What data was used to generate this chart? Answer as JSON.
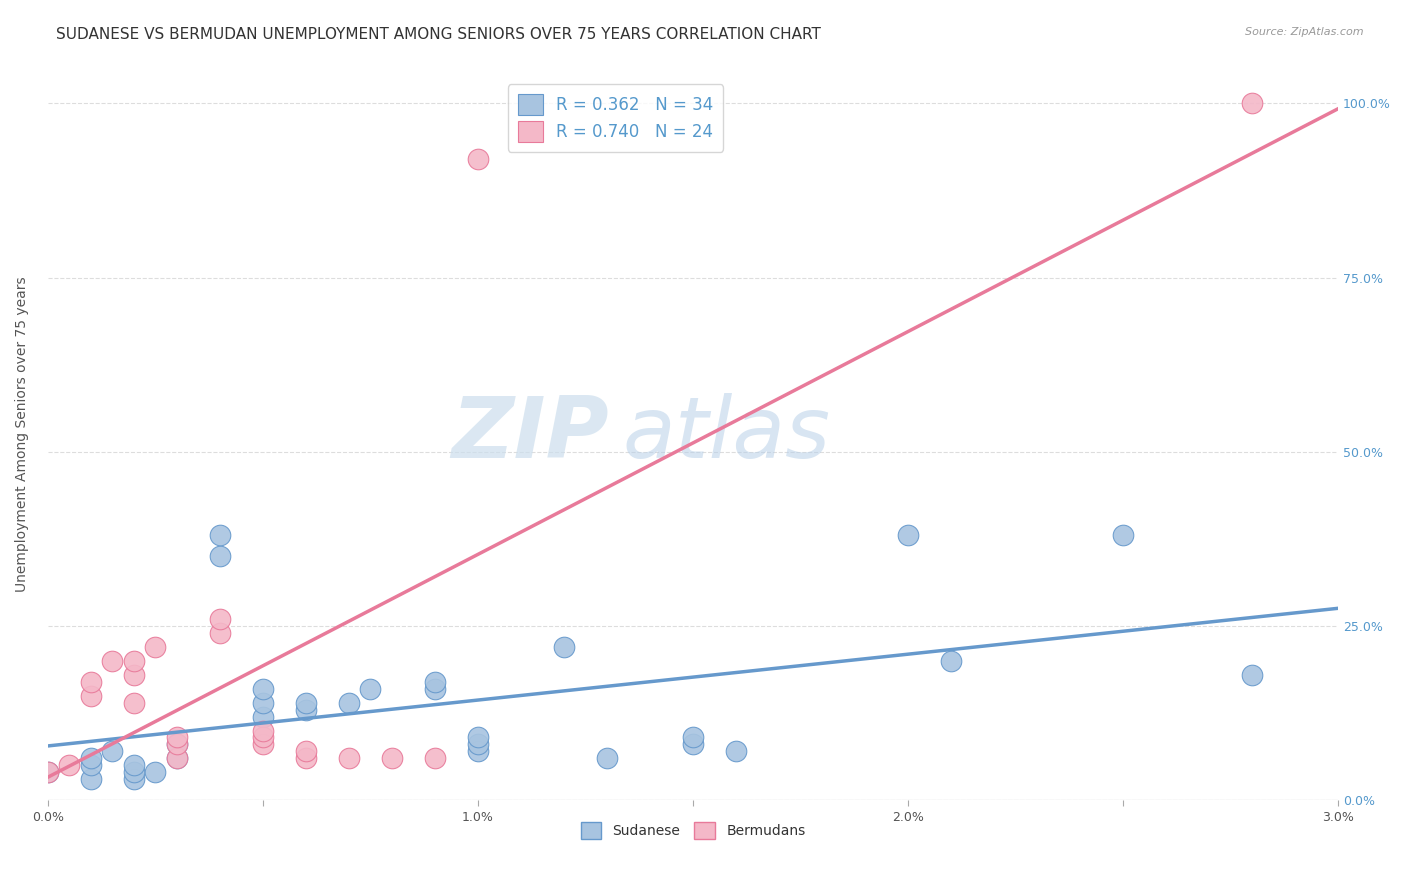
{
  "title": "SUDANESE VS BERMUDAN UNEMPLOYMENT AMONG SENIORS OVER 75 YEARS CORRELATION CHART",
  "source": "Source: ZipAtlas.com",
  "ylabel": "Unemployment Among Seniors over 75 years",
  "xlim": [
    0.0,
    0.03
  ],
  "ylim": [
    0.0,
    1.05
  ],
  "xticks": [
    0.0,
    0.005,
    0.01,
    0.015,
    0.02,
    0.025,
    0.03
  ],
  "xticklabels": [
    "0.0%",
    "",
    "1.0%",
    "",
    "2.0%",
    "",
    "3.0%"
  ],
  "yticks": [
    0.0,
    0.25,
    0.5,
    0.75,
    1.0
  ],
  "yticklabels": [
    "0.0%",
    "25.0%",
    "50.0%",
    "75.0%",
    "100.0%"
  ],
  "sudanese_x": [
    0.0,
    0.001,
    0.001,
    0.001,
    0.0015,
    0.002,
    0.002,
    0.002,
    0.0025,
    0.003,
    0.003,
    0.004,
    0.004,
    0.005,
    0.005,
    0.005,
    0.006,
    0.006,
    0.007,
    0.0075,
    0.009,
    0.009,
    0.01,
    0.01,
    0.01,
    0.012,
    0.013,
    0.015,
    0.015,
    0.016,
    0.02,
    0.021,
    0.025,
    0.028
  ],
  "sudanese_y": [
    0.04,
    0.03,
    0.05,
    0.06,
    0.07,
    0.03,
    0.04,
    0.05,
    0.04,
    0.08,
    0.06,
    0.35,
    0.38,
    0.12,
    0.14,
    0.16,
    0.13,
    0.14,
    0.14,
    0.16,
    0.16,
    0.17,
    0.07,
    0.08,
    0.09,
    0.22,
    0.06,
    0.08,
    0.09,
    0.07,
    0.38,
    0.2,
    0.38,
    0.18
  ],
  "bermudan_x": [
    0.0,
    0.0005,
    0.001,
    0.001,
    0.0015,
    0.002,
    0.002,
    0.002,
    0.0025,
    0.003,
    0.003,
    0.003,
    0.004,
    0.004,
    0.005,
    0.005,
    0.005,
    0.006,
    0.006,
    0.007,
    0.008,
    0.009,
    0.01,
    0.028
  ],
  "bermudan_y": [
    0.04,
    0.05,
    0.15,
    0.17,
    0.2,
    0.14,
    0.18,
    0.2,
    0.22,
    0.06,
    0.08,
    0.09,
    0.24,
    0.26,
    0.08,
    0.09,
    0.1,
    0.06,
    0.07,
    0.06,
    0.06,
    0.06,
    0.92,
    1.0
  ],
  "sudanese_color": "#a8c4e0",
  "bermudan_color": "#f4b8c8",
  "sudanese_line_color": "#6699cc",
  "bermudan_line_color": "#e87a9a",
  "R_sudanese": 0.362,
  "N_sudanese": 34,
  "R_bermudan": 0.74,
  "N_bermudan": 24,
  "legend_label_sudanese": "Sudanese",
  "legend_label_bermudan": "Bermudans",
  "watermark_zip": "ZIP",
  "watermark_atlas": "atlas",
  "title_fontsize": 11,
  "axis_label_fontsize": 10,
  "tick_fontsize": 9,
  "background_color": "#ffffff",
  "grid_color": "#dddddd"
}
